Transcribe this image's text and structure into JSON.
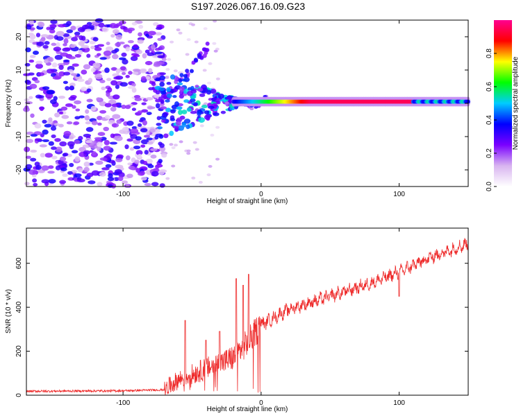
{
  "chart_data": [
    {
      "type": "heatmap",
      "title": "S197.2026.067.16.09.G23",
      "xlabel": "Height of straight line (km)",
      "ylabel": "Frequency (Hz)",
      "xlim": [
        -170,
        150
      ],
      "ylim": [
        -25,
        25
      ],
      "x_ticks": [
        -100,
        0,
        100
      ],
      "y_ticks": [
        -20,
        -10,
        0,
        10,
        20
      ],
      "colorbar": {
        "label": "Normalized spectral amplitude",
        "range": [
          0.0,
          1.0
        ],
        "ticks": [
          0.0,
          0.2,
          0.4,
          0.6,
          0.8
        ],
        "colors": [
          "#ffffff",
          "#d8b4f0",
          "#7a00ff",
          "#0000ff",
          "#00ccff",
          "#00ff00",
          "#ffff00",
          "#ff0000",
          "#ff0090"
        ]
      },
      "features": {
        "noise_region_x": [
          -170,
          -70
        ],
        "noise_amplitude": 0.3,
        "branch_start": {
          "x": -73,
          "y": 0
        },
        "branch_end": {
          "x": -38,
          "y": 17
        },
        "central_line_freq": 0.5,
        "central_line_x": [
          -20,
          150
        ],
        "central_line_peak_amplitude": 0.95
      }
    },
    {
      "type": "line",
      "xlabel": "Height of straight line (km)",
      "ylabel": "SNR (10 * v/v)",
      "xlim": [
        -170,
        150
      ],
      "ylim": [
        0,
        760
      ],
      "x_ticks": [
        -100,
        0,
        100
      ],
      "y_ticks": [
        0,
        200,
        400,
        600
      ],
      "series": [
        {
          "name": "SNR",
          "color": "#ee2a2a",
          "trend_x": [
            -170,
            -100,
            -70,
            -60,
            -40,
            -20,
            -10,
            0,
            20,
            50,
            80,
            100,
            120,
            150
          ],
          "trend_y": [
            18,
            20,
            25,
            70,
            120,
            170,
            240,
            320,
            390,
            450,
            510,
            560,
            620,
            690
          ],
          "spike_x": [
            -55,
            -40,
            -30,
            -18,
            -13,
            -9,
            100
          ],
          "spike_y": [
            340,
            250,
            290,
            530,
            500,
            550,
            450
          ]
        }
      ]
    }
  ]
}
